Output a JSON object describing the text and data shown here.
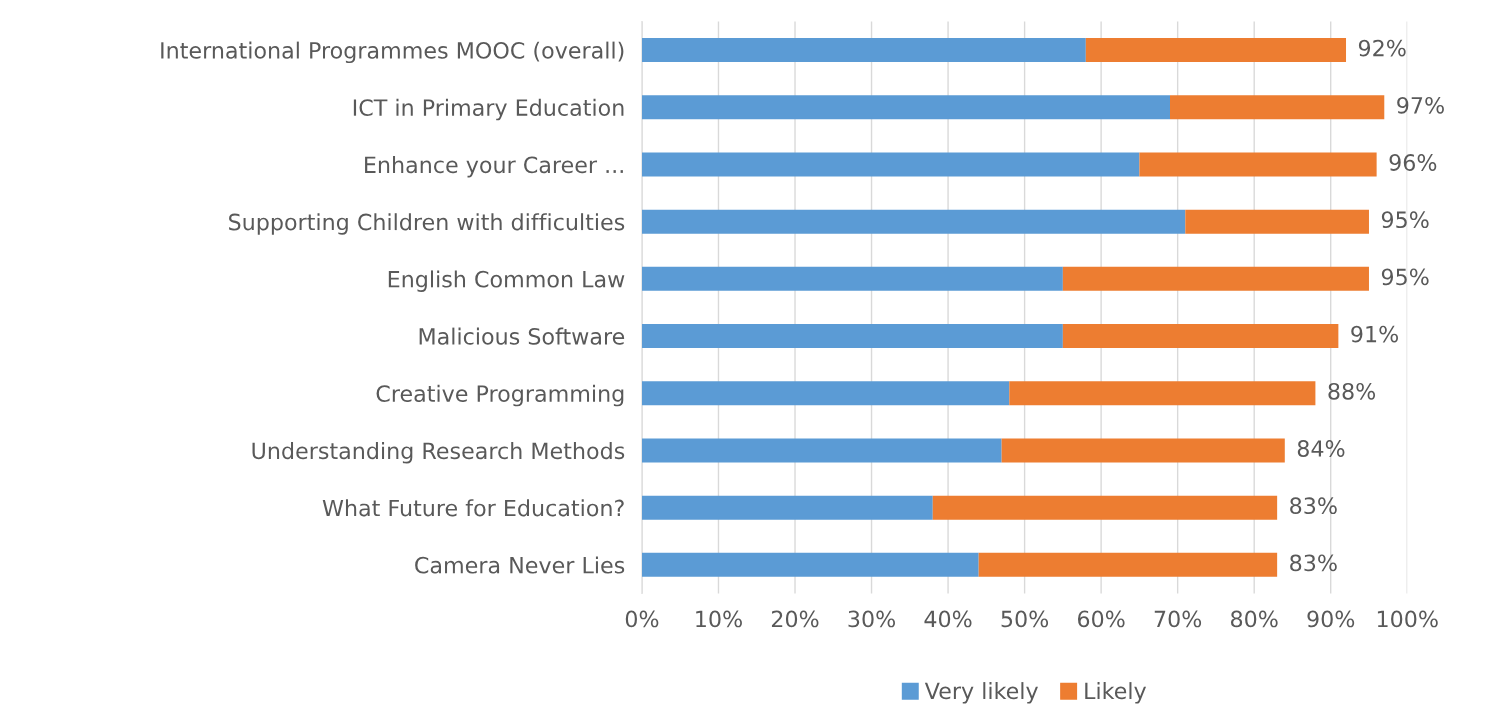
{
  "chart_data": {
    "type": "bar",
    "orientation": "horizontal",
    "stacked": true,
    "categories": [
      "International Programmes MOOC (overall)",
      "ICT in Primary Education",
      "Enhance your Career ...",
      "Supporting Children with difficulties",
      "English Common Law",
      "Malicious Software",
      "Creative Programming",
      "Understanding Research Methods",
      "What Future for Education?",
      "Camera Never Lies"
    ],
    "series": [
      {
        "name": "Very likely",
        "color": "#5b9bd5",
        "values": [
          58,
          69,
          65,
          71,
          55,
          55,
          48,
          47,
          38,
          44
        ]
      },
      {
        "name": "Likely",
        "color": "#ed7d31",
        "values": [
          34,
          28,
          31,
          24,
          40,
          36,
          40,
          37,
          45,
          39
        ]
      }
    ],
    "totals": [
      "92%",
      "97%",
      "96%",
      "95%",
      "95%",
      "91%",
      "88%",
      "84%",
      "83%",
      "83%"
    ],
    "xlim": [
      0,
      100
    ],
    "xticks": [
      {
        "value": 0,
        "label": "0%"
      },
      {
        "value": 10,
        "label": "10%"
      },
      {
        "value": 20,
        "label": "20%"
      },
      {
        "value": 30,
        "label": "30%"
      },
      {
        "value": 40,
        "label": "40%"
      },
      {
        "value": 50,
        "label": "50%"
      },
      {
        "value": 60,
        "label": "60%"
      },
      {
        "value": 70,
        "label": "70%"
      },
      {
        "value": 80,
        "label": "80%"
      },
      {
        "value": 90,
        "label": "90%"
      },
      {
        "value": 100,
        "label": "100%"
      }
    ],
    "grid": "x",
    "legend": "bottom"
  }
}
